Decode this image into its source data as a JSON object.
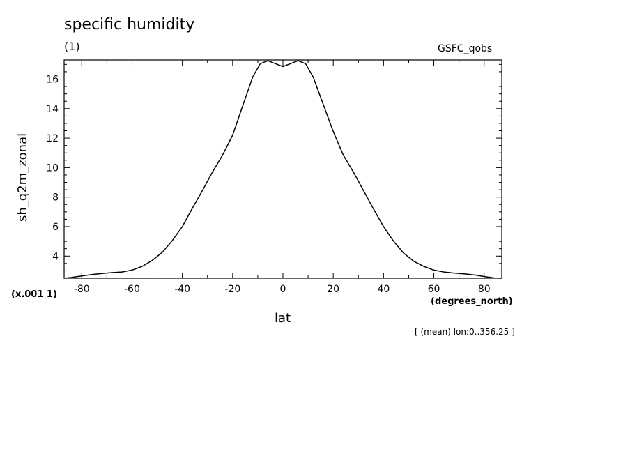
{
  "header": {
    "title": "specific humidity",
    "subtitle": "(1)",
    "source": "GSFC_qobs"
  },
  "axes": {
    "y_scale_note": "(x.001 1)",
    "x_units": "(degrees_north)",
    "footnote": "[ (mean) lon:0..356.25 ]"
  },
  "chart_data": {
    "type": "line",
    "xlabel": "lat",
    "ylabel": "sh_q2m_zonal",
    "xlim": [
      -87,
      87
    ],
    "ylim": [
      2.5,
      17.3
    ],
    "xticks": [
      -80,
      -60,
      -40,
      -20,
      0,
      20,
      40,
      60,
      80
    ],
    "yticks": [
      4,
      6,
      8,
      10,
      12,
      14,
      16
    ],
    "grid": false,
    "series": [
      {
        "x": [
          -87,
          -84,
          -80,
          -76,
          -72,
          -68,
          -64,
          -60,
          -56,
          -52,
          -48,
          -44,
          -40,
          -36,
          -32,
          -28,
          -24,
          -20,
          -16,
          -12,
          -9,
          -6,
          -3,
          0,
          3,
          6,
          9,
          12,
          16,
          20,
          24,
          28,
          32,
          36,
          40,
          44,
          48,
          52,
          56,
          60,
          64,
          68,
          72,
          76,
          80,
          84,
          87
        ],
        "y": [
          2.5,
          2.55,
          2.65,
          2.75,
          2.82,
          2.88,
          2.92,
          3.05,
          3.3,
          3.7,
          4.25,
          5.05,
          6.0,
          7.25,
          8.45,
          9.7,
          10.85,
          12.2,
          14.2,
          16.15,
          17.05,
          17.25,
          17.05,
          16.85,
          17.05,
          17.25,
          17.05,
          16.15,
          14.3,
          12.45,
          10.85,
          9.7,
          8.45,
          7.2,
          6.0,
          5.0,
          4.2,
          3.65,
          3.3,
          3.05,
          2.92,
          2.85,
          2.8,
          2.72,
          2.62,
          2.52,
          2.5
        ]
      }
    ]
  }
}
